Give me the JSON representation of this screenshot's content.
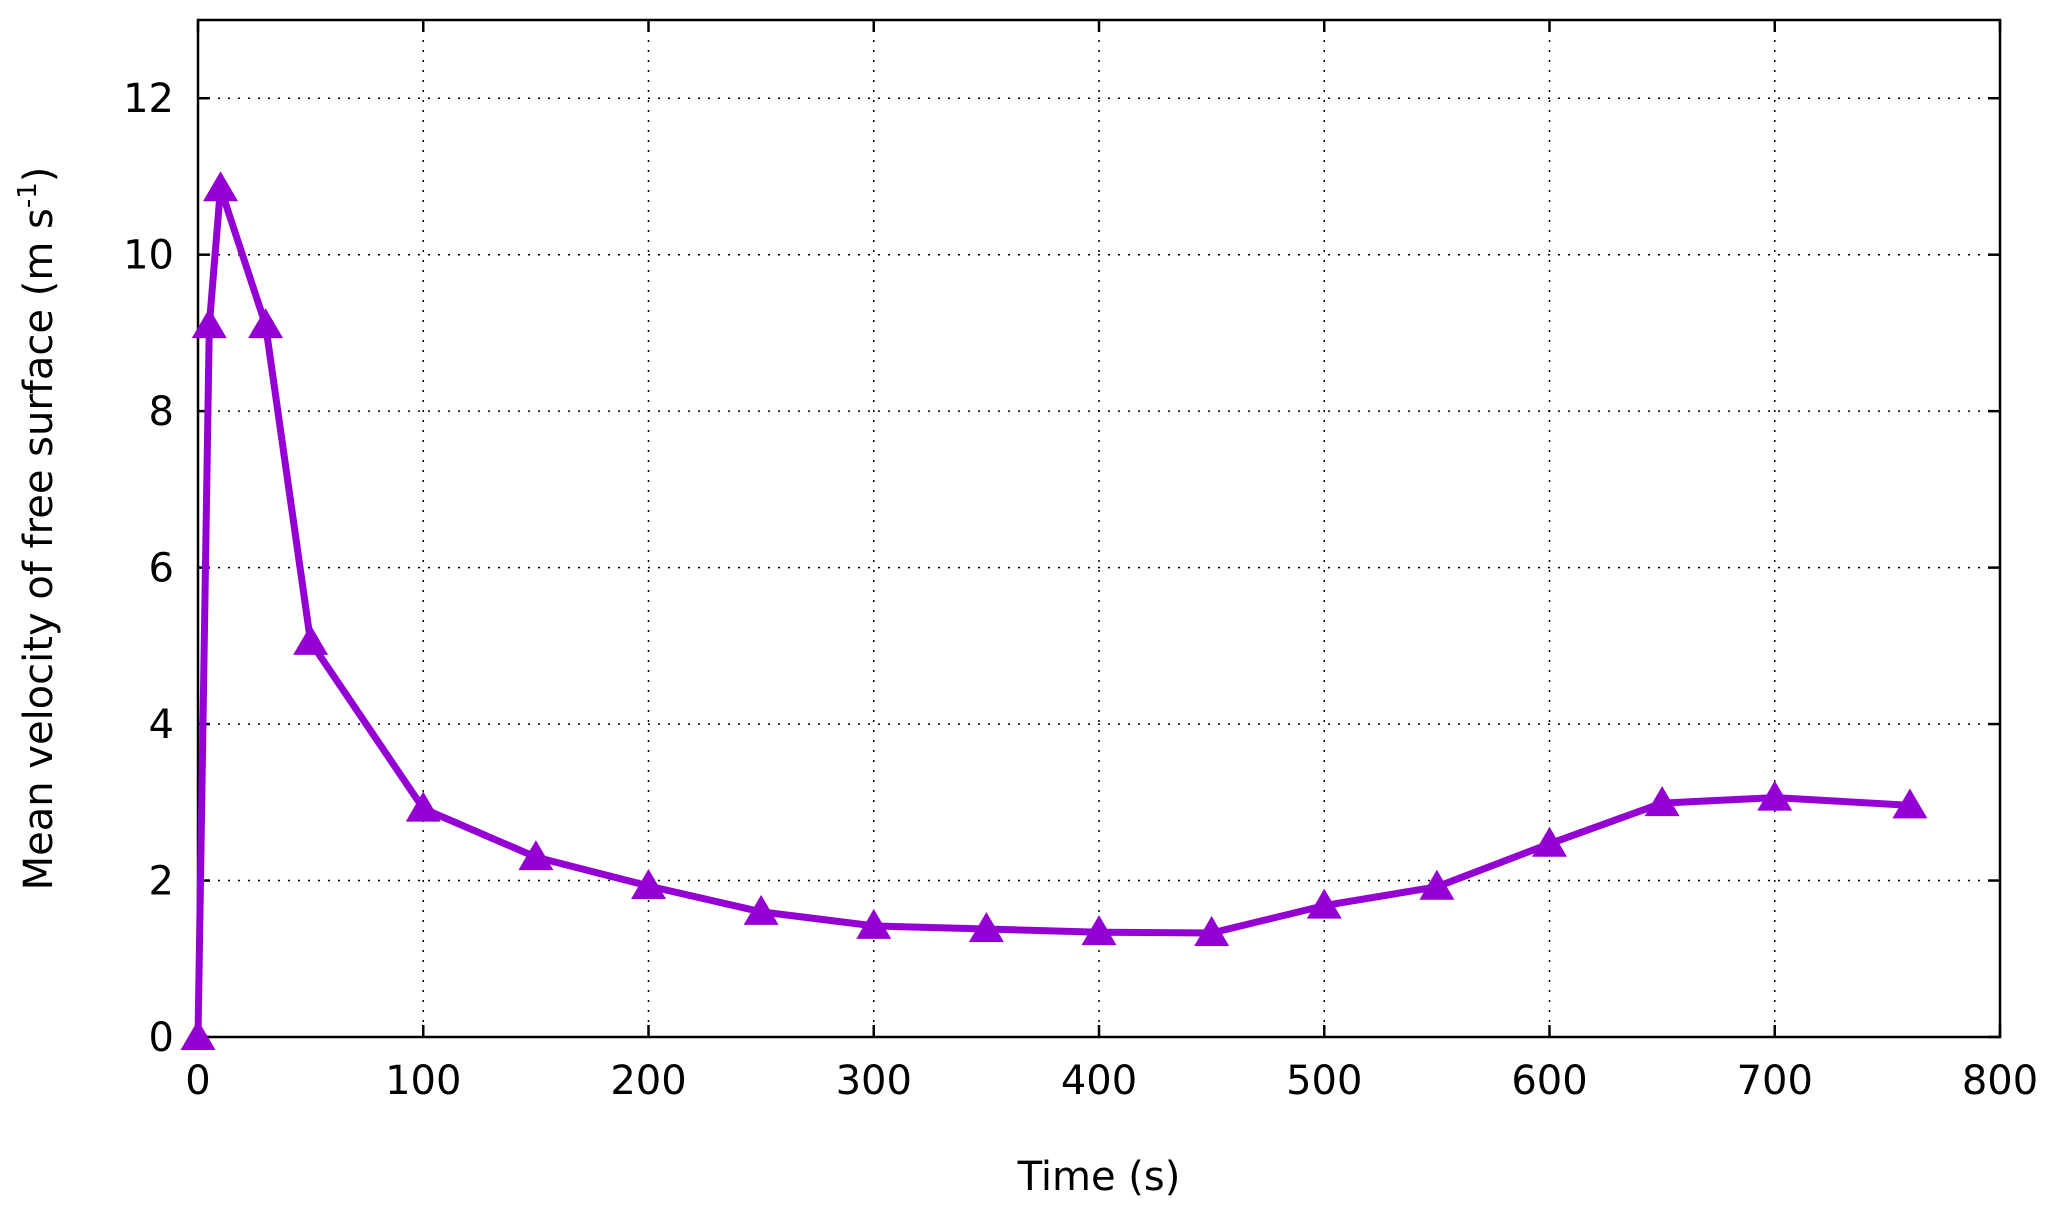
{
  "chart_data": {
    "type": "line",
    "xlabel": "Time (s)",
    "ylabel": {
      "main": "Mean velocity of free surface (m s",
      "sup": "-1",
      "close": ")"
    },
    "xlim": [
      0,
      800
    ],
    "ylim": [
      0,
      13
    ],
    "xticks": [
      "0",
      "100",
      "200",
      "300",
      "400",
      "500",
      "600",
      "700",
      "800"
    ],
    "yticks": [
      "0",
      "2",
      "4",
      "6",
      "8",
      "10",
      "12"
    ],
    "grid": true,
    "series": [
      {
        "color": "#9400D3",
        "marker": "triangle",
        "x": [
          0,
          5,
          10,
          30,
          50,
          100,
          150,
          200,
          250,
          300,
          350,
          400,
          450,
          500,
          550,
          600,
          650,
          700,
          760
        ],
        "y": [
          0,
          9.1,
          10.85,
          9.1,
          5.05,
          2.92,
          2.3,
          1.93,
          1.6,
          1.42,
          1.38,
          1.34,
          1.33,
          1.68,
          1.92,
          2.47,
          2.99,
          3.06,
          2.96
        ]
      }
    ]
  }
}
